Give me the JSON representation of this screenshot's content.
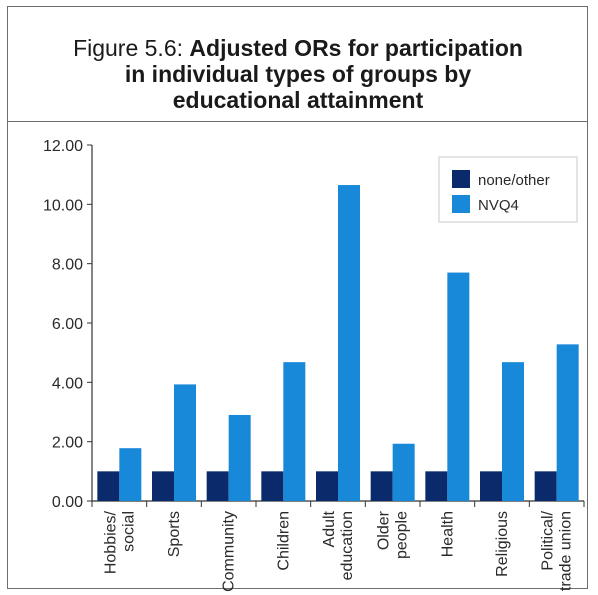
{
  "figure": {
    "prefix": "Figure 5.6: ",
    "bold_line1": "Adjusted ORs for participation",
    "bold_line2": "in individual types of groups by",
    "bold_line3": "educational attainment"
  },
  "colors": {
    "none_other": "#0b2a6b",
    "nvq4": "#1888d8",
    "axis": "#333333"
  },
  "chart_data": {
    "type": "bar",
    "categories": [
      [
        "Hobbies/",
        "social"
      ],
      [
        "Sports"
      ],
      [
        "Community"
      ],
      [
        "Children"
      ],
      [
        "Adult",
        "education"
      ],
      [
        "Older",
        "people"
      ],
      [
        "Health"
      ],
      [
        "Religious"
      ],
      [
        "Political/",
        "trade union"
      ]
    ],
    "series": [
      {
        "name": "none/other",
        "values": [
          1.0,
          1.0,
          1.0,
          1.0,
          1.0,
          1.0,
          1.0,
          1.0,
          1.0
        ]
      },
      {
        "name": "NVQ4",
        "values": [
          1.78,
          3.93,
          2.9,
          4.68,
          10.65,
          1.93,
          7.7,
          4.68,
          5.28
        ]
      }
    ],
    "ylim": [
      0,
      12
    ],
    "yticks": [
      "0.00",
      "2.00",
      "4.00",
      "6.00",
      "8.00",
      "10.00",
      "12.00"
    ],
    "grid": false,
    "legend": "top-right"
  }
}
